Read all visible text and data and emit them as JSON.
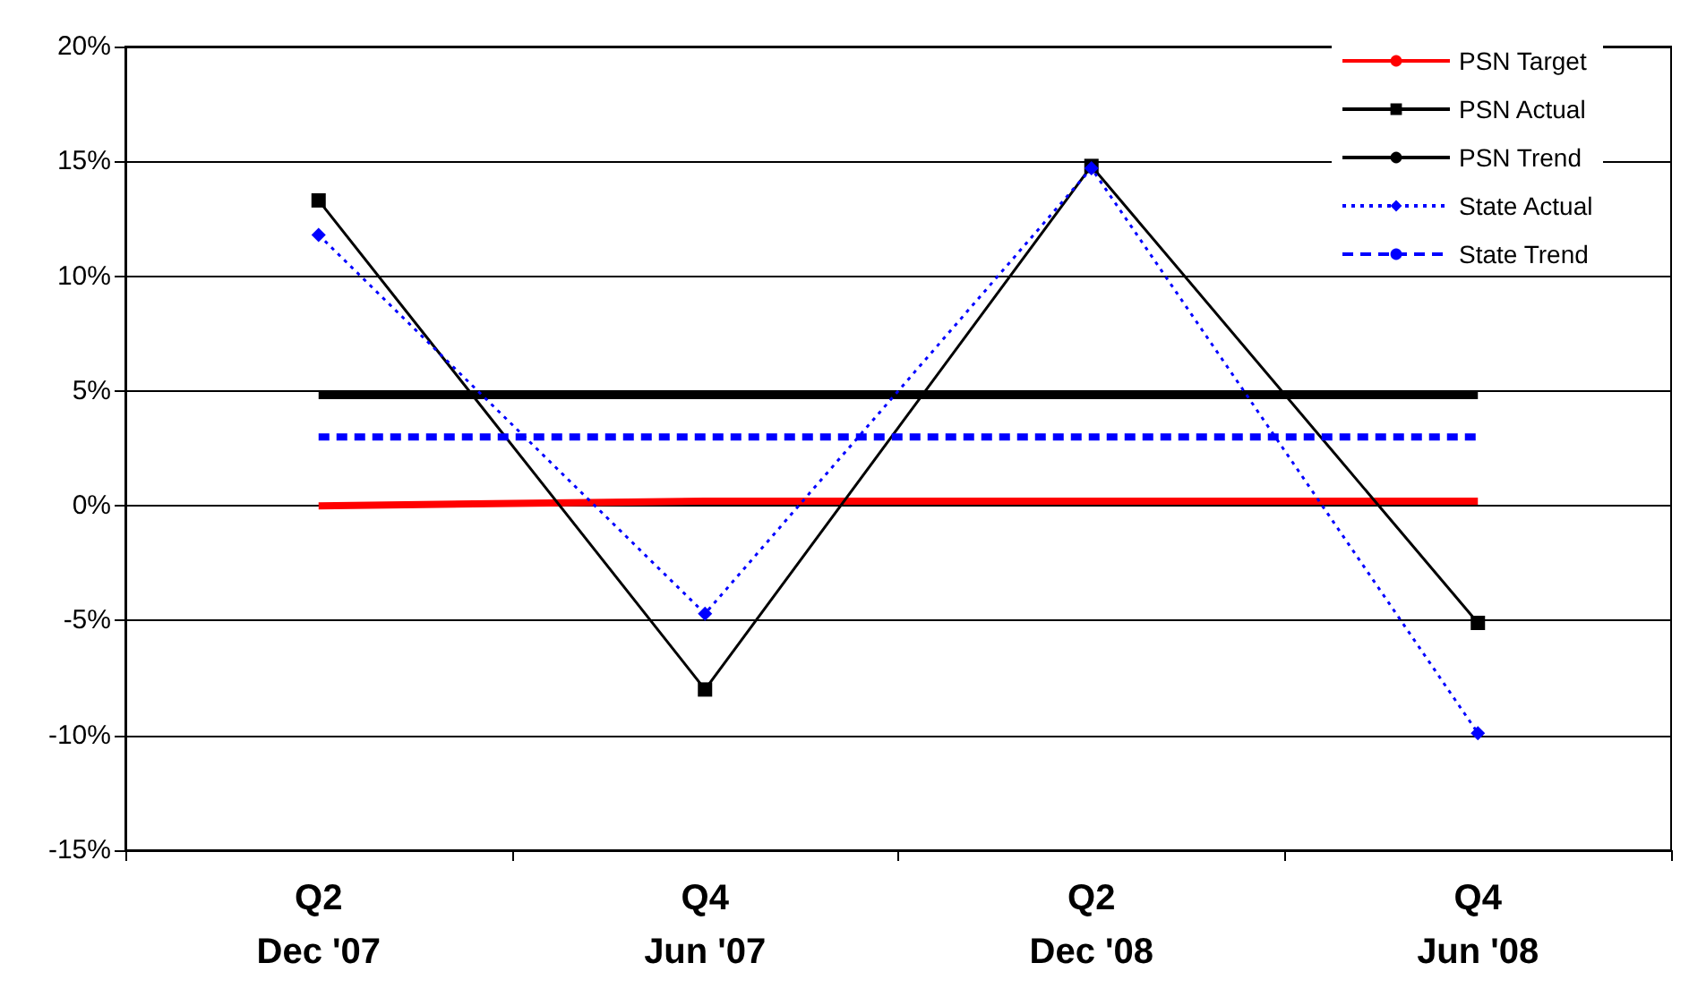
{
  "chart_data": {
    "type": "line",
    "categories": [
      "Q2\nDec '07",
      "Q4\nJun '07",
      "Q2\nDec '08",
      "Q4\nJun '08"
    ],
    "series": [
      {
        "name": "PSN Target",
        "color": "#ff0000",
        "marker": "none",
        "line_style": "solid",
        "values": [
          0,
          0.2,
          0.2,
          0.2
        ]
      },
      {
        "name": "PSN Actual",
        "color": "#000000",
        "marker": "square",
        "line_style": "solid",
        "values": [
          13.3,
          -8.0,
          14.8,
          -5.1
        ]
      },
      {
        "name": "PSN Trend",
        "color": "#000000",
        "marker": "none",
        "line_style": "solid",
        "values": [
          4.8,
          4.8,
          4.8,
          4.8
        ]
      },
      {
        "name": "State Actual",
        "color": "#0000ff",
        "marker": "diamond",
        "line_style": "dotted",
        "values": [
          11.8,
          -4.7,
          14.7,
          -9.9
        ]
      },
      {
        "name": "State Trend",
        "color": "#0000ff",
        "marker": "none",
        "line_style": "dashed",
        "values": [
          3.0,
          3.0,
          3.0,
          3.0
        ]
      }
    ],
    "ylim": [
      -15,
      20
    ],
    "yticks": [
      {
        "value": -15,
        "label": "-15%"
      },
      {
        "value": -10,
        "label": "-10%"
      },
      {
        "value": -5,
        "label": "-5%"
      },
      {
        "value": 0,
        "label": "0%"
      },
      {
        "value": 5,
        "label": "5%"
      },
      {
        "value": 10,
        "label": "10%"
      },
      {
        "value": 15,
        "label": "15%"
      },
      {
        "value": 20,
        "label": "20%"
      }
    ],
    "grid": "y",
    "legend": "top right"
  }
}
